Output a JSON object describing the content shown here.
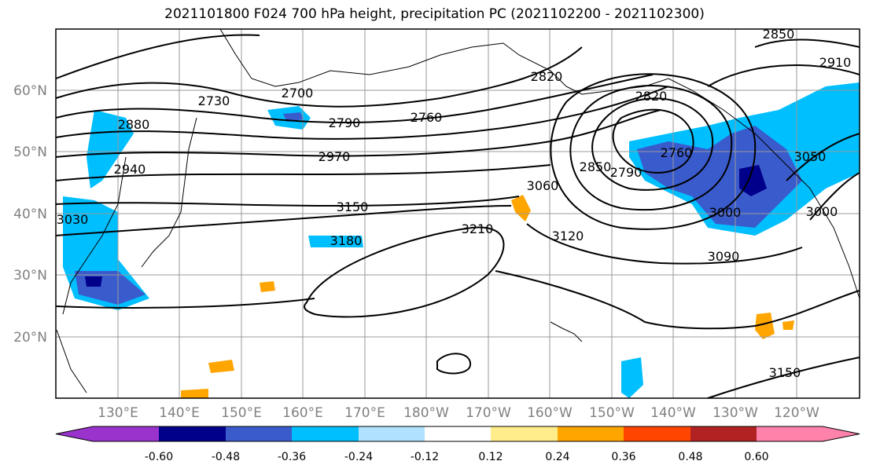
{
  "title": "2021101800 F024 700 hPa height, precipitation PC (2021102200 - 2021102300)",
  "map": {
    "lat_labels": [
      "60°N",
      "50°N",
      "40°N",
      "30°N",
      "20°N"
    ],
    "lon_labels": [
      "130°E",
      "140°E",
      "150°E",
      "160°E",
      "170°E",
      "180°W",
      "170°W",
      "160°W",
      "150°W",
      "140°W",
      "130°W",
      "120°W"
    ],
    "contour_labels": [
      "2850",
      "2910",
      "2820",
      "2820",
      "2730",
      "2700",
      "2790",
      "2760",
      "2880",
      "2970",
      "2940",
      "2760",
      "2850",
      "2790",
      "3060",
      "3050",
      "3150",
      "3000",
      "3000",
      "3030",
      "3180",
      "3210",
      "3120",
      "3090",
      "3150"
    ]
  },
  "colorbar": {
    "tick_labels": [
      "-0.60",
      "-0.48",
      "-0.36",
      "-0.24",
      "-0.12",
      "0.12",
      "0.24",
      "0.36",
      "0.48",
      "0.60"
    ],
    "colors": [
      "#9a33cc",
      "#00008b",
      "#3a5bcc",
      "#00bfff",
      "#b0e2ff",
      "#ffffff",
      "#ffec8b",
      "#ffa500",
      "#ff4500",
      "#b22222",
      "#ff82ab"
    ]
  }
}
